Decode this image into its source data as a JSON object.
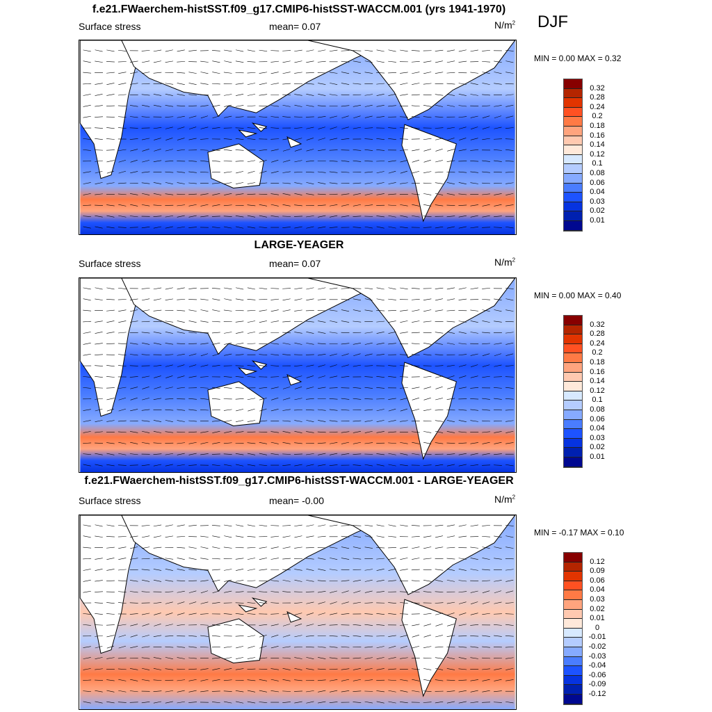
{
  "season": "DJF",
  "panels": [
    {
      "title": "f.e21.FWaerchem-histSST.f09_g17.CMIP6-histSST-WACCM.001 (yrs 1941-1970)",
      "variable": "Surface stress",
      "mean": "mean=   0.07",
      "units": "N/m",
      "units_sup": "2",
      "minmax": "MIN =   0.00 MAX =   0.32",
      "levels": [
        "0.32",
        "0.28",
        "0.24",
        "0.2",
        "0.18",
        "0.16",
        "0.14",
        "0.12",
        "0.1",
        "0.08",
        "0.06",
        "0.04",
        "0.03",
        "0.02",
        "0.01"
      ],
      "kind": "abs"
    },
    {
      "title": "LARGE-YEAGER",
      "variable": "Surface stress",
      "mean": "mean=   0.07",
      "units": "N/m",
      "units_sup": "2",
      "minmax": "MIN =   0.00 MAX =   0.40",
      "levels": [
        "0.32",
        "0.28",
        "0.24",
        "0.2",
        "0.18",
        "0.16",
        "0.14",
        "0.12",
        "0.1",
        "0.08",
        "0.06",
        "0.04",
        "0.03",
        "0.02",
        "0.01"
      ],
      "kind": "abs"
    },
    {
      "title": "f.e21.FWaerchem-histSST.f09_g17.CMIP6-histSST-WACCM.001 - LARGE-YEAGER",
      "variable": "Surface stress",
      "mean": "mean=   -0.00",
      "units": "N/m",
      "units_sup": "2",
      "minmax": "MIN =  -0.17 MAX =   0.10",
      "levels": [
        "0.12",
        "0.09",
        "0.06",
        "0.04",
        "0.03",
        "0.02",
        "0.01",
        "0",
        "-0.01",
        "-0.02",
        "-0.03",
        "-0.04",
        "-0.06",
        "-0.09",
        "-0.12"
      ],
      "kind": "diff"
    }
  ],
  "colors": [
    "#870000",
    "#b42500",
    "#e23400",
    "#ff5122",
    "#ff7a45",
    "#ffa47e",
    "#ffc9b0",
    "#ffe9da",
    "#d7e9ff",
    "#b4ccff",
    "#86aaff",
    "#4a7dff",
    "#1d53ff",
    "#0633e0",
    "#0020b0",
    "#000890"
  ]
}
